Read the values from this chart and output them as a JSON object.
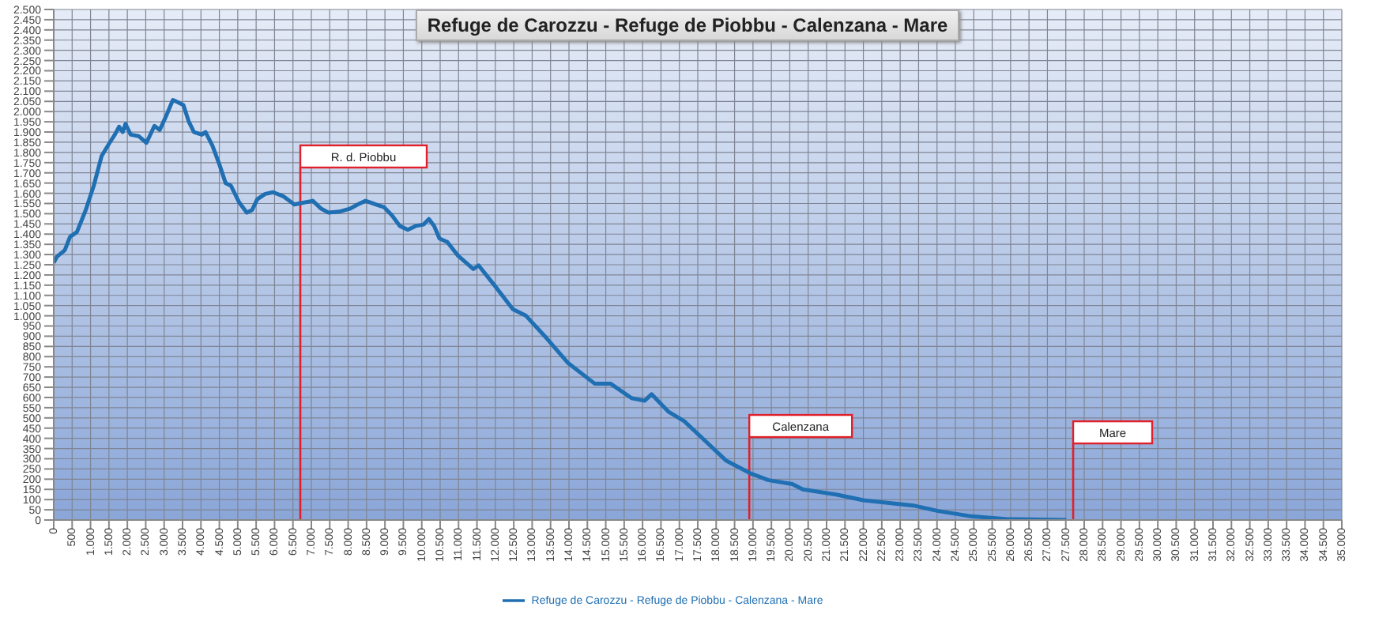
{
  "chart_data": {
    "type": "line",
    "title": "Refuge de Carozzu - Refuge de Piobbu - Calenzana - Mare",
    "x": [
      0,
      90,
      300,
      443,
      630,
      870,
      1087,
      1300,
      1517,
      1660,
      1775,
      1875,
      1950,
      2090,
      2305,
      2520,
      2735,
      2880,
      3065,
      3237,
      3380,
      3524,
      3667,
      3810,
      4025,
      4125,
      4310,
      4500,
      4670,
      4815,
      5030,
      5245,
      5390,
      5530,
      5745,
      5960,
      6250,
      6537,
      6750,
      7040,
      7255,
      7470,
      7757,
      8043,
      8258,
      8473,
      8760,
      8975,
      9190,
      9405,
      9620,
      9835,
      10050,
      10193,
      10337,
      10480,
      10695,
      10982,
      11400,
      11543,
      11973,
      12475,
      12833,
      13408,
      13980,
      14697,
      15127,
      15700,
      16055,
      16244,
      16700,
      17130,
      17705,
      18277,
      18922,
      19425,
      20069,
      20353,
      21285,
      22002,
      23360,
      24005,
      24937,
      25870,
      27516
    ],
    "series": [
      {
        "name": "Refuge de Carozzu - Refuge de Piobbu - Calenzana - Mare",
        "color": "#1f6fb2",
        "values": [
          1260,
          1290,
          1321,
          1387,
          1410,
          1518,
          1637,
          1782,
          1847,
          1887,
          1926,
          1900,
          1940,
          1887,
          1880,
          1847,
          1930,
          1910,
          1983,
          2057,
          2045,
          2032,
          1952,
          1900,
          1887,
          1900,
          1834,
          1742,
          1650,
          1637,
          1558,
          1505,
          1518,
          1571,
          1597,
          1605,
          1584,
          1545,
          1553,
          1563,
          1526,
          1505,
          1510,
          1524,
          1545,
          1563,
          1545,
          1532,
          1492,
          1440,
          1421,
          1440,
          1447,
          1474,
          1440,
          1379,
          1361,
          1295,
          1229,
          1247,
          1150,
          1032,
          1000,
          887,
          768,
          668,
          668,
          597,
          584,
          616,
          531,
          484,
          387,
          290,
          229,
          195,
          176,
          150,
          124,
          97,
          71,
          45,
          18,
          5,
          0
        ]
      }
    ],
    "xlim": [
      0,
      35000
    ],
    "ylim": [
      0,
      2500
    ],
    "xticks": [
      0,
      500,
      {
        "value": 1000,
        "label": "1.000"
      },
      {
        "value": 1500,
        "label": "1.500"
      },
      {
        "value": 2000,
        "label": "2.000"
      },
      {
        "value": 2500,
        "label": "2.500"
      },
      {
        "value": 3000,
        "label": "3.000"
      },
      {
        "value": 3500,
        "label": "3.500"
      },
      {
        "value": 4000,
        "label": "4.000"
      },
      {
        "value": 4500,
        "label": "4.500"
      },
      {
        "value": 5000,
        "label": "5.000"
      },
      {
        "value": 5500,
        "label": "5.500"
      },
      {
        "value": 6000,
        "label": "6.000"
      },
      {
        "value": 6500,
        "label": "6.500"
      },
      {
        "value": 7000,
        "label": "7.000"
      },
      {
        "value": 7500,
        "label": "7.500"
      },
      {
        "value": 8000,
        "label": "8.000"
      },
      {
        "value": 8500,
        "label": "8.500"
      },
      {
        "value": 9000,
        "label": "9.000"
      },
      {
        "value": 9500,
        "label": "9.500"
      },
      {
        "value": 10000,
        "label": "10.000"
      },
      {
        "value": 10500,
        "label": "10.500"
      },
      {
        "value": 11000,
        "label": "11.000"
      },
      {
        "value": 11500,
        "label": "11.500"
      },
      {
        "value": 12000,
        "label": "12.000"
      },
      {
        "value": 12500,
        "label": "12.500"
      },
      {
        "value": 13000,
        "label": "13.000"
      },
      {
        "value": 13500,
        "label": "13.500"
      },
      {
        "value": 14000,
        "label": "14.000"
      },
      {
        "value": 14500,
        "label": "14.500"
      },
      {
        "value": 15000,
        "label": "15.000"
      },
      {
        "value": 15500,
        "label": "15.500"
      },
      {
        "value": 16000,
        "label": "16.000"
      },
      {
        "value": 16500,
        "label": "16.500"
      },
      {
        "value": 17000,
        "label": "17.000"
      },
      {
        "value": 17500,
        "label": "17.500"
      },
      {
        "value": 18000,
        "label": "18.000"
      },
      {
        "value": 18500,
        "label": "18.500"
      },
      {
        "value": 19000,
        "label": "19.000"
      },
      {
        "value": 19500,
        "label": "19.500"
      },
      {
        "value": 20000,
        "label": "20.000"
      },
      {
        "value": 20500,
        "label": "20.500"
      },
      {
        "value": 21000,
        "label": "21.000"
      },
      {
        "value": 21500,
        "label": "21.500"
      },
      {
        "value": 22000,
        "label": "22.000"
      },
      {
        "value": 22500,
        "label": "22.500"
      },
      {
        "value": 23000,
        "label": "23.000"
      },
      {
        "value": 23500,
        "label": "23.500"
      },
      {
        "value": 24000,
        "label": "24.000"
      },
      {
        "value": 24500,
        "label": "24.500"
      },
      {
        "value": 25000,
        "label": "25.000"
      },
      {
        "value": 25500,
        "label": "25.500"
      },
      {
        "value": 26000,
        "label": "26.000"
      },
      {
        "value": 26500,
        "label": "26.500"
      },
      {
        "value": 27000,
        "label": "27.000"
      },
      {
        "value": 27500,
        "label": "27.500"
      },
      {
        "value": 28000,
        "label": "28.000"
      },
      {
        "value": 28500,
        "label": "28.500"
      },
      {
        "value": 29000,
        "label": "29.000"
      },
      {
        "value": 29500,
        "label": "29.500"
      },
      {
        "value": 30000,
        "label": "30.000"
      },
      {
        "value": 30500,
        "label": "30.500"
      },
      {
        "value": 31000,
        "label": "31.000"
      },
      {
        "value": 31500,
        "label": "31.500"
      },
      {
        "value": 32000,
        "label": "32.000"
      },
      {
        "value": 32500,
        "label": "32.500"
      },
      {
        "value": 33000,
        "label": "33.000"
      },
      {
        "value": 33500,
        "label": "33.500"
      },
      {
        "value": 34000,
        "label": "34.000"
      },
      {
        "value": 34500,
        "label": "34.500"
      },
      {
        "value": 35000,
        "label": "35.000"
      }
    ],
    "yticks": [
      0,
      50,
      100,
      150,
      200,
      250,
      300,
      350,
      400,
      450,
      500,
      550,
      600,
      650,
      700,
      750,
      800,
      850,
      900,
      950,
      {
        "value": 1000,
        "label": "1.000"
      },
      {
        "value": 1050,
        "label": "1.050"
      },
      {
        "value": 1100,
        "label": "1.100"
      },
      {
        "value": 1150,
        "label": "1.150"
      },
      {
        "value": 1200,
        "label": "1.200"
      },
      {
        "value": 1250,
        "label": "1.250"
      },
      {
        "value": 1300,
        "label": "1.300"
      },
      {
        "value": 1350,
        "label": "1.350"
      },
      {
        "value": 1400,
        "label": "1.400"
      },
      {
        "value": 1450,
        "label": "1.450"
      },
      {
        "value": 1500,
        "label": "1.500"
      },
      {
        "value": 1550,
        "label": "1.550"
      },
      {
        "value": 1600,
        "label": "1.600"
      },
      {
        "value": 1650,
        "label": "1.650"
      },
      {
        "value": 1700,
        "label": "1.700"
      },
      {
        "value": 1750,
        "label": "1.750"
      },
      {
        "value": 1800,
        "label": "1.800"
      },
      {
        "value": 1850,
        "label": "1.850"
      },
      {
        "value": 1900,
        "label": "1.900"
      },
      {
        "value": 1950,
        "label": "1.950"
      },
      {
        "value": 2000,
        "label": "2.000"
      },
      {
        "value": 2050,
        "label": "2.050"
      },
      {
        "value": 2100,
        "label": "2.100"
      },
      {
        "value": 2150,
        "label": "2.150"
      },
      {
        "value": 2200,
        "label": "2.200"
      },
      {
        "value": 2250,
        "label": "2.250"
      },
      {
        "value": 2300,
        "label": "2.300"
      },
      {
        "value": 2350,
        "label": "2.350"
      },
      {
        "value": 2400,
        "label": "2.400"
      },
      {
        "value": 2450,
        "label": "2.450"
      },
      {
        "value": 2500,
        "label": "2.500"
      }
    ],
    "ref_lines": [
      {
        "axis": "x",
        "value": 6700,
        "label": "R. d. Piobbu",
        "color": "#e0202a"
      },
      {
        "axis": "x",
        "value": 18900,
        "label": "Calenzana",
        "color": "#e0202a"
      },
      {
        "axis": "x",
        "value": 27700,
        "label": "Mare",
        "color": "#e0202a"
      }
    ],
    "grid": true,
    "legend": "bottom",
    "marker": "none",
    "line_style": "solid"
  }
}
